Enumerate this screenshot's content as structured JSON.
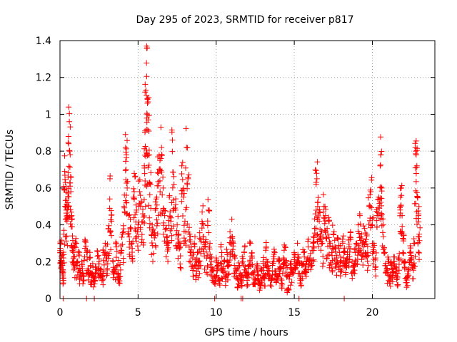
{
  "chart_data": {
    "type": "scatter",
    "title": "Day 295 of 2023, SRMTID for receiver p817",
    "xlabel": "GPS time / hours",
    "ylabel": "SRMTID / TECUs",
    "xlim": [
      0,
      24
    ],
    "ylim": [
      0,
      1.4
    ],
    "xticks": [
      0,
      5,
      10,
      15,
      20
    ],
    "xtick_labels": [
      "0",
      "5",
      "10",
      "15",
      "20"
    ],
    "yticks": [
      0,
      0.2,
      0.4,
      0.6,
      0.8,
      1.0,
      1.2,
      1.4
    ],
    "ytick_labels": [
      "0",
      "0.2",
      "0.4",
      "0.6",
      "0.8",
      "1",
      "1.2",
      "1.4"
    ],
    "grid": true,
    "marker": "+",
    "color": "#ff0000",
    "series": [
      {
        "name": "SRMTID",
        "points": [
          [
            0.0,
            0.26
          ],
          [
            0.05,
            0.3
          ],
          [
            0.1,
            0.22
          ],
          [
            0.15,
            0.18
          ],
          [
            0.2,
            0.14
          ],
          [
            0.25,
            0.35
          ],
          [
            0.3,
            0.69
          ],
          [
            0.35,
            0.63
          ],
          [
            0.4,
            0.48
          ],
          [
            0.45,
            0.42
          ],
          [
            0.5,
            0.52
          ],
          [
            0.55,
            0.88
          ],
          [
            0.6,
            0.96
          ],
          [
            0.62,
            0.8
          ],
          [
            0.7,
            0.58
          ],
          [
            0.75,
            0.45
          ],
          [
            0.8,
            0.34
          ],
          [
            0.85,
            0.25
          ],
          [
            0.9,
            0.2
          ],
          [
            1.0,
            0.3
          ],
          [
            1.1,
            0.18
          ],
          [
            1.2,
            0.24
          ],
          [
            1.3,
            0.14
          ],
          [
            1.4,
            0.2
          ],
          [
            1.5,
            0.12
          ],
          [
            1.6,
            0.32
          ],
          [
            1.7,
            0.25
          ],
          [
            1.8,
            0.16
          ],
          [
            1.9,
            0.22
          ],
          [
            2.0,
            0.13
          ],
          [
            2.1,
            0.19
          ],
          [
            2.2,
            0.1
          ],
          [
            2.3,
            0.17
          ],
          [
            2.4,
            0.23
          ],
          [
            2.5,
            0.2
          ],
          [
            2.6,
            0.15
          ],
          [
            2.7,
            0.12
          ],
          [
            2.8,
            0.25
          ],
          [
            2.9,
            0.3
          ],
          [
            3.0,
            0.22
          ],
          [
            3.1,
            0.38
          ],
          [
            3.2,
            0.65
          ],
          [
            3.3,
            0.42
          ],
          [
            3.4,
            0.2
          ],
          [
            3.5,
            0.15
          ],
          [
            3.6,
            0.28
          ],
          [
            3.7,
            0.18
          ],
          [
            3.8,
            0.12
          ],
          [
            3.9,
            0.25
          ],
          [
            4.0,
            0.35
          ],
          [
            4.1,
            0.5
          ],
          [
            4.2,
            0.82
          ],
          [
            4.25,
            0.78
          ],
          [
            4.3,
            0.6
          ],
          [
            4.4,
            0.45
          ],
          [
            4.5,
            0.38
          ],
          [
            4.6,
            0.3
          ],
          [
            4.7,
            0.55
          ],
          [
            4.8,
            0.66
          ],
          [
            4.9,
            0.48
          ],
          [
            5.0,
            0.4
          ],
          [
            5.1,
            0.58
          ],
          [
            5.2,
            0.52
          ],
          [
            5.3,
            0.46
          ],
          [
            5.4,
            0.72
          ],
          [
            5.45,
            0.91
          ],
          [
            5.5,
            1.13
          ],
          [
            5.55,
            1.37
          ],
          [
            5.58,
            1.36
          ],
          [
            5.6,
            1.06
          ],
          [
            5.65,
            0.97
          ],
          [
            5.7,
            0.78
          ],
          [
            5.8,
            0.62
          ],
          [
            5.9,
            0.4
          ],
          [
            6.0,
            0.35
          ],
          [
            6.1,
            0.48
          ],
          [
            6.2,
            0.55
          ],
          [
            6.3,
            0.68
          ],
          [
            6.4,
            0.75
          ],
          [
            6.5,
            0.82
          ],
          [
            6.6,
            0.6
          ],
          [
            6.7,
            0.45
          ],
          [
            6.8,
            0.38
          ],
          [
            6.9,
            0.3
          ],
          [
            7.0,
            0.55
          ],
          [
            7.1,
            0.42
          ],
          [
            7.2,
            0.86
          ],
          [
            7.3,
            0.62
          ],
          [
            7.4,
            0.48
          ],
          [
            7.5,
            0.4
          ],
          [
            7.6,
            0.35
          ],
          [
            7.7,
            0.28
          ],
          [
            7.8,
            0.72
          ],
          [
            7.9,
            0.55
          ],
          [
            8.0,
            0.42
          ],
          [
            8.1,
            0.82
          ],
          [
            8.2,
            0.65
          ],
          [
            8.3,
            0.35
          ],
          [
            8.4,
            0.28
          ],
          [
            8.5,
            0.22
          ],
          [
            8.6,
            0.3
          ],
          [
            8.7,
            0.18
          ],
          [
            8.8,
            0.25
          ],
          [
            8.9,
            0.2
          ],
          [
            9.0,
            0.32
          ],
          [
            9.1,
            0.47
          ],
          [
            9.2,
            0.4
          ],
          [
            9.3,
            0.28
          ],
          [
            9.4,
            0.22
          ],
          [
            9.5,
            0.48
          ],
          [
            9.6,
            0.3
          ],
          [
            9.7,
            0.2
          ],
          [
            9.8,
            0.15
          ],
          [
            9.9,
            0.12
          ],
          [
            10.0,
            0.22
          ],
          [
            10.1,
            0.18
          ],
          [
            10.2,
            0.1
          ],
          [
            10.3,
            0.28
          ],
          [
            10.4,
            0.15
          ],
          [
            10.5,
            0.2
          ],
          [
            10.6,
            0.12
          ],
          [
            10.7,
            0.25
          ],
          [
            10.8,
            0.18
          ],
          [
            10.9,
            0.33
          ],
          [
            11.0,
            0.43
          ],
          [
            11.1,
            0.3
          ],
          [
            11.2,
            0.22
          ],
          [
            11.3,
            0.15
          ],
          [
            11.4,
            0.1
          ],
          [
            11.5,
            0.18
          ],
          [
            11.6,
            0.12
          ],
          [
            11.7,
            0.2
          ],
          [
            11.8,
            0.25
          ],
          [
            11.9,
            0.15
          ],
          [
            12.0,
            0.12
          ],
          [
            12.1,
            0.18
          ],
          [
            12.2,
            0.3
          ],
          [
            12.3,
            0.22
          ],
          [
            12.4,
            0.14
          ],
          [
            12.5,
            0.1
          ],
          [
            12.6,
            0.17
          ],
          [
            12.7,
            0.13
          ],
          [
            12.8,
            0.08
          ],
          [
            12.9,
            0.15
          ],
          [
            13.0,
            0.2
          ],
          [
            13.1,
            0.12
          ],
          [
            13.2,
            0.28
          ],
          [
            13.3,
            0.2
          ],
          [
            13.4,
            0.15
          ],
          [
            13.5,
            0.1
          ],
          [
            13.6,
            0.18
          ],
          [
            13.7,
            0.24
          ],
          [
            13.8,
            0.15
          ],
          [
            13.9,
            0.12
          ],
          [
            14.0,
            0.2
          ],
          [
            14.1,
            0.16
          ],
          [
            14.2,
            0.1
          ],
          [
            14.3,
            0.22
          ],
          [
            14.4,
            0.28
          ],
          [
            14.5,
            0.18
          ],
          [
            14.6,
            0.05
          ],
          [
            14.7,
            0.12
          ],
          [
            14.8,
            0.2
          ],
          [
            14.9,
            0.14
          ],
          [
            15.0,
            0.25
          ],
          [
            15.1,
            0.18
          ],
          [
            15.2,
            0.3
          ],
          [
            15.3,
            0.22
          ],
          [
            15.4,
            0.12
          ],
          [
            15.5,
            0.18
          ],
          [
            15.6,
            0.25
          ],
          [
            15.7,
            0.15
          ],
          [
            15.8,
            0.2
          ],
          [
            15.9,
            0.28
          ],
          [
            16.0,
            0.22
          ],
          [
            16.1,
            0.18
          ],
          [
            16.2,
            0.3
          ],
          [
            16.3,
            0.38
          ],
          [
            16.4,
            0.62
          ],
          [
            16.45,
            0.65
          ],
          [
            16.5,
            0.5
          ],
          [
            16.6,
            0.42
          ],
          [
            16.7,
            0.35
          ],
          [
            16.8,
            0.3
          ],
          [
            16.9,
            0.5
          ],
          [
            17.0,
            0.45
          ],
          [
            17.1,
            0.38
          ],
          [
            17.2,
            0.42
          ],
          [
            17.3,
            0.3
          ],
          [
            17.4,
            0.25
          ],
          [
            17.5,
            0.35
          ],
          [
            17.6,
            0.28
          ],
          [
            17.7,
            0.22
          ],
          [
            17.8,
            0.32
          ],
          [
            17.9,
            0.25
          ],
          [
            18.0,
            0.2
          ],
          [
            18.1,
            0.3
          ],
          [
            18.2,
            0.25
          ],
          [
            18.3,
            0.18
          ],
          [
            18.4,
            0.22
          ],
          [
            18.5,
            0.28
          ],
          [
            18.6,
            0.32
          ],
          [
            18.7,
            0.2
          ],
          [
            18.8,
            0.18
          ],
          [
            18.9,
            0.25
          ],
          [
            19.0,
            0.3
          ],
          [
            19.1,
            0.4
          ],
          [
            19.2,
            0.45
          ],
          [
            19.3,
            0.35
          ],
          [
            19.4,
            0.28
          ],
          [
            19.5,
            0.38
          ],
          [
            19.6,
            0.32
          ],
          [
            19.7,
            0.25
          ],
          [
            19.8,
            0.5
          ],
          [
            19.9,
            0.58
          ],
          [
            20.0,
            0.4
          ],
          [
            20.1,
            0.3
          ],
          [
            20.2,
            0.22
          ],
          [
            20.3,
            0.45
          ],
          [
            20.4,
            0.55
          ],
          [
            20.5,
            0.72
          ],
          [
            20.55,
            0.78
          ],
          [
            20.6,
            0.6
          ],
          [
            20.7,
            0.4
          ],
          [
            20.8,
            0.25
          ],
          [
            20.9,
            0.15
          ],
          [
            21.0,
            0.2
          ],
          [
            21.1,
            0.12
          ],
          [
            21.2,
            0.18
          ],
          [
            21.3,
            0.14
          ],
          [
            21.4,
            0.2
          ],
          [
            21.5,
            0.16
          ],
          [
            21.6,
            0.12
          ],
          [
            21.7,
            0.22
          ],
          [
            21.8,
            0.55
          ],
          [
            21.85,
            0.6
          ],
          [
            21.9,
            0.45
          ],
          [
            22.0,
            0.35
          ],
          [
            22.1,
            0.2
          ],
          [
            22.2,
            0.1
          ],
          [
            22.3,
            0.15
          ],
          [
            22.4,
            0.25
          ],
          [
            22.5,
            0.22
          ],
          [
            22.6,
            0.18
          ],
          [
            22.7,
            0.3
          ],
          [
            22.75,
            0.82
          ],
          [
            22.8,
            0.78
          ],
          [
            22.85,
            0.72
          ],
          [
            22.9,
            0.55
          ],
          [
            22.95,
            0.45
          ],
          [
            23.0,
            0.35
          ]
        ]
      }
    ],
    "baseline_markers_x": [
      0.2,
      1.7,
      2.2,
      9.9,
      11.6,
      11.7,
      15.3,
      18.2
    ]
  }
}
